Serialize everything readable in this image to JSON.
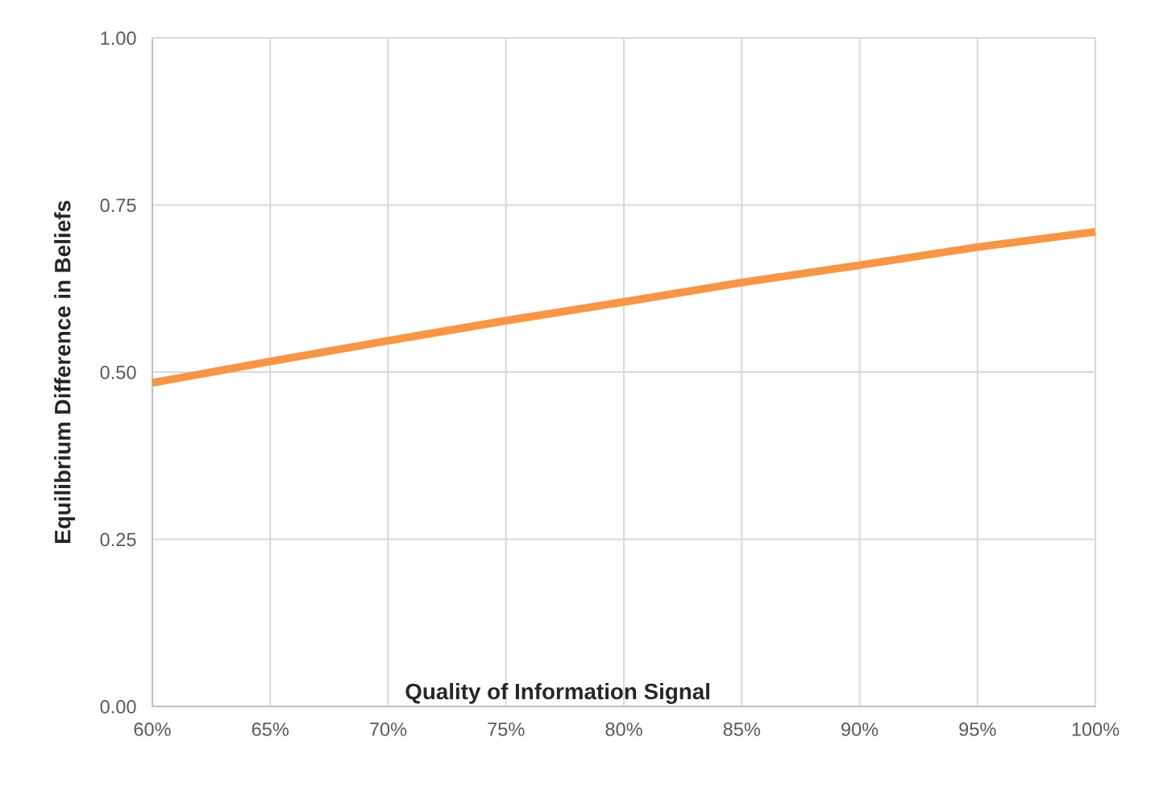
{
  "chart_data": {
    "type": "line",
    "xlabel": "Quality of Information Signal",
    "ylabel": "Equilibrium Difference in Beliefs",
    "x": [
      0.6,
      0.65,
      0.7,
      0.75,
      0.8,
      0.85,
      0.9,
      0.95,
      1.0
    ],
    "series": [
      {
        "color": "#f79646",
        "values": [
          0.484,
          0.516,
          0.547,
          0.577,
          0.605,
          0.634,
          0.66,
          0.687,
          0.71
        ]
      }
    ],
    "xlim": [
      0.6,
      1.0
    ],
    "xticks": [
      {
        "value": 0.6,
        "label": "60%"
      },
      {
        "value": 0.65,
        "label": "65%"
      },
      {
        "value": 0.7,
        "label": "70%"
      },
      {
        "value": 0.75,
        "label": "75%"
      },
      {
        "value": 0.8,
        "label": "80%"
      },
      {
        "value": 0.85,
        "label": "85%"
      },
      {
        "value": 0.9,
        "label": "90%"
      },
      {
        "value": 0.95,
        "label": "95%"
      },
      {
        "value": 1.0,
        "label": "100%"
      }
    ],
    "ylim": [
      0,
      1
    ],
    "yticks": [
      {
        "value": 0,
        "label": "0.00"
      },
      {
        "value": 0.25,
        "label": "0.25"
      },
      {
        "value": 0.5,
        "label": "0.50"
      },
      {
        "value": 0.75,
        "label": "0.75"
      },
      {
        "value": 1.0,
        "label": "1.00"
      }
    ],
    "grid": true,
    "marker": "none",
    "line_style": "solid"
  }
}
